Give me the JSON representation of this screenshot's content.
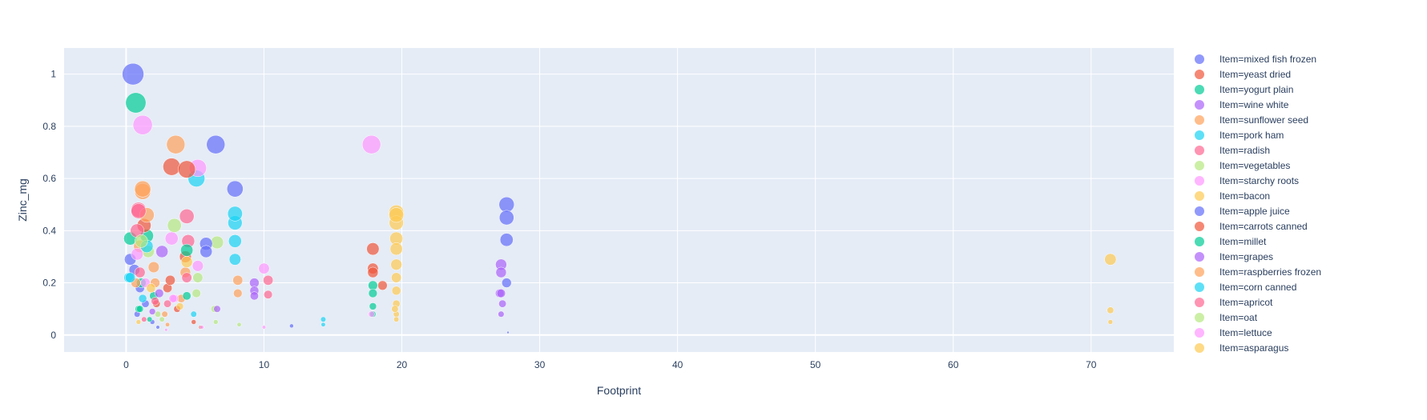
{
  "chart_data": {
    "type": "scatter",
    "subtype": "bubble",
    "xlabel": "Footprint",
    "ylabel": "Zinc_mg",
    "xlim": [
      -4.5,
      76
    ],
    "ylim": [
      -0.065,
      1.1
    ],
    "x_ticks": [
      0,
      10,
      20,
      30,
      40,
      50,
      60,
      70
    ],
    "y_ticks": [
      0,
      0.2,
      0.4,
      0.6,
      0.8,
      1
    ],
    "x_tick_labels": [
      "0",
      "10",
      "20",
      "30",
      "40",
      "50",
      "60",
      "70"
    ],
    "y_tick_labels": [
      "0",
      "0.2",
      "0.4",
      "0.6",
      "0.8",
      "1"
    ],
    "grid": true,
    "background": "#e5ecf6",
    "legend_position": "right",
    "size_encodes": "Zinc_mg",
    "series": [
      {
        "name": "Item=mixed fish frozen",
        "color": "#636efa",
        "points": [
          [
            0.5,
            1.0
          ],
          [
            0.3,
            0.29
          ],
          [
            0.6,
            0.25
          ],
          [
            1.0,
            0.18
          ],
          [
            1.4,
            0.12
          ],
          [
            0.8,
            0.08
          ],
          [
            1.9,
            0.05
          ],
          [
            2.3,
            0.03
          ]
        ]
      },
      {
        "name": "Item=yeast dried",
        "color": "#ef553b",
        "points": [
          [
            3.3,
            0.645
          ],
          [
            4.3,
            0.3
          ],
          [
            3.0,
            0.18
          ],
          [
            2.2,
            0.12
          ],
          [
            3.7,
            0.1
          ],
          [
            4.9,
            0.05
          ],
          [
            5.4,
            0.03
          ]
        ]
      },
      {
        "name": "Item=yogurt plain",
        "color": "#00cc96",
        "points": [
          [
            0.7,
            0.89
          ],
          [
            1.5,
            0.38
          ],
          [
            0.3,
            0.37
          ],
          [
            1.1,
            0.2
          ],
          [
            2.0,
            0.15
          ],
          [
            0.9,
            0.1
          ],
          [
            1.7,
            0.06
          ]
        ]
      },
      {
        "name": "Item=wine white",
        "color": "#ab63fa",
        "points": [
          [
            2.6,
            0.32
          ],
          [
            27.2,
            0.27
          ],
          [
            27.2,
            0.24
          ],
          [
            27.1,
            0.16
          ],
          [
            27.3,
            0.12
          ],
          [
            27.2,
            0.08
          ],
          [
            9.3,
            0.2
          ]
        ]
      },
      {
        "name": "Item=sunflower seed",
        "color": "#ffa15a",
        "points": [
          [
            3.6,
            0.73
          ],
          [
            1.2,
            0.55
          ],
          [
            1.0,
            0.34
          ],
          [
            2.1,
            0.2
          ],
          [
            4.0,
            0.14
          ],
          [
            2.8,
            0.08
          ],
          [
            8.1,
            0.21
          ]
        ]
      },
      {
        "name": "Item=pork ham",
        "color": "#19d3f3",
        "points": [
          [
            5.1,
            0.6
          ],
          [
            7.9,
            0.43
          ],
          [
            7.9,
            0.36
          ],
          [
            7.9,
            0.29
          ],
          [
            1.2,
            0.14
          ],
          [
            0.2,
            0.22
          ],
          [
            14.3,
            0.06
          ]
        ]
      },
      {
        "name": "Item=radish",
        "color": "#ff6692",
        "points": [
          [
            0.9,
            0.48
          ],
          [
            4.4,
            0.455
          ],
          [
            4.5,
            0.36
          ],
          [
            1.0,
            0.24
          ],
          [
            3.0,
            0.12
          ],
          [
            10.3,
            0.21
          ],
          [
            10.3,
            0.155
          ]
        ]
      },
      {
        "name": "Item=vegetables",
        "color": "#b6e880",
        "points": [
          [
            3.5,
            0.42
          ],
          [
            6.6,
            0.355
          ],
          [
            5.2,
            0.22
          ],
          [
            6.4,
            0.1
          ],
          [
            1.6,
            0.32
          ],
          [
            2.6,
            0.06
          ]
        ]
      },
      {
        "name": "Item=starchy roots",
        "color": "#ff97ff",
        "points": [
          [
            1.2,
            0.805
          ],
          [
            17.8,
            0.73
          ],
          [
            5.2,
            0.64
          ],
          [
            3.3,
            0.37
          ],
          [
            5.2,
            0.265
          ],
          [
            10.0,
            0.255
          ],
          [
            1.4,
            0.2
          ],
          [
            3.5,
            0.14
          ]
        ]
      },
      {
        "name": "Item=bacon",
        "color": "#fecb52",
        "points": [
          [
            19.6,
            0.47
          ],
          [
            19.6,
            0.43
          ],
          [
            19.6,
            0.37
          ],
          [
            19.6,
            0.33
          ],
          [
            19.6,
            0.27
          ],
          [
            19.6,
            0.22
          ],
          [
            19.6,
            0.17
          ],
          [
            19.6,
            0.12
          ],
          [
            19.6,
            0.08
          ],
          [
            71.4,
            0.29
          ],
          [
            71.4,
            0.095
          ],
          [
            71.4,
            0.05
          ]
        ]
      },
      {
        "name": "Item=apple juice",
        "color": "#636efa",
        "points": [
          [
            6.5,
            0.73
          ],
          [
            7.9,
            0.56
          ],
          [
            27.6,
            0.5
          ],
          [
            27.6,
            0.45
          ],
          [
            27.6,
            0.365
          ],
          [
            5.8,
            0.35
          ],
          [
            5.8,
            0.32
          ],
          [
            27.6,
            0.2
          ],
          [
            27.7,
            0.01
          ],
          [
            12.0,
            0.035
          ]
        ]
      },
      {
        "name": "Item=carrots canned",
        "color": "#ef553b",
        "points": [
          [
            4.4,
            0.635
          ],
          [
            17.9,
            0.33
          ],
          [
            17.9,
            0.255
          ],
          [
            17.9,
            0.24
          ],
          [
            18.6,
            0.19
          ],
          [
            1.3,
            0.42
          ],
          [
            3.2,
            0.21
          ]
        ]
      },
      {
        "name": "Item=millet",
        "color": "#00cc96",
        "points": [
          [
            4.4,
            0.325
          ],
          [
            17.9,
            0.19
          ],
          [
            17.9,
            0.16
          ],
          [
            17.9,
            0.11
          ],
          [
            17.9,
            0.08
          ],
          [
            4.4,
            0.15
          ],
          [
            1.0,
            0.1
          ]
        ]
      },
      {
        "name": "Item=grapes",
        "color": "#ab63fa",
        "points": [
          [
            27.2,
            0.16
          ],
          [
            9.3,
            0.17
          ],
          [
            9.3,
            0.15
          ],
          [
            6.6,
            0.1
          ],
          [
            2.4,
            0.16
          ],
          [
            1.9,
            0.09
          ]
        ]
      },
      {
        "name": "Item=raspberries frozen",
        "color": "#ffa15a",
        "points": [
          [
            1.2,
            0.56
          ],
          [
            1.5,
            0.46
          ],
          [
            8.1,
            0.16
          ],
          [
            4.3,
            0.24
          ],
          [
            2.0,
            0.26
          ],
          [
            0.7,
            0.2
          ],
          [
            3.0,
            0.04
          ]
        ]
      },
      {
        "name": "Item=corn canned",
        "color": "#19d3f3",
        "points": [
          [
            7.9,
            0.465
          ],
          [
            1.5,
            0.34
          ],
          [
            0.3,
            0.22
          ],
          [
            4.9,
            0.08
          ],
          [
            14.3,
            0.04
          ]
        ]
      },
      {
        "name": "Item=apricot",
        "color": "#ff6692",
        "points": [
          [
            0.9,
            0.475
          ],
          [
            0.8,
            0.4
          ],
          [
            4.4,
            0.22
          ],
          [
            2.1,
            0.13
          ],
          [
            1.3,
            0.06
          ]
        ]
      },
      {
        "name": "Item=oat",
        "color": "#b6e880",
        "points": [
          [
            1.1,
            0.36
          ],
          [
            5.1,
            0.16
          ],
          [
            2.3,
            0.08
          ],
          [
            6.5,
            0.05
          ],
          [
            8.2,
            0.04
          ]
        ]
      },
      {
        "name": "Item=lettuce",
        "color": "#ff97ff",
        "points": [
          [
            0.8,
            0.31
          ],
          [
            3.4,
            0.14
          ],
          [
            17.8,
            0.08
          ],
          [
            10.0,
            0.03
          ],
          [
            2.9,
            0.02
          ],
          [
            5.5,
            0.03
          ]
        ]
      },
      {
        "name": "Item=asparagus",
        "color": "#fecb52",
        "points": [
          [
            19.6,
            0.46
          ],
          [
            4.4,
            0.28
          ],
          [
            1.8,
            0.18
          ],
          [
            3.9,
            0.11
          ],
          [
            0.9,
            0.05
          ],
          [
            19.5,
            0.1
          ],
          [
            19.6,
            0.06
          ]
        ]
      }
    ]
  }
}
